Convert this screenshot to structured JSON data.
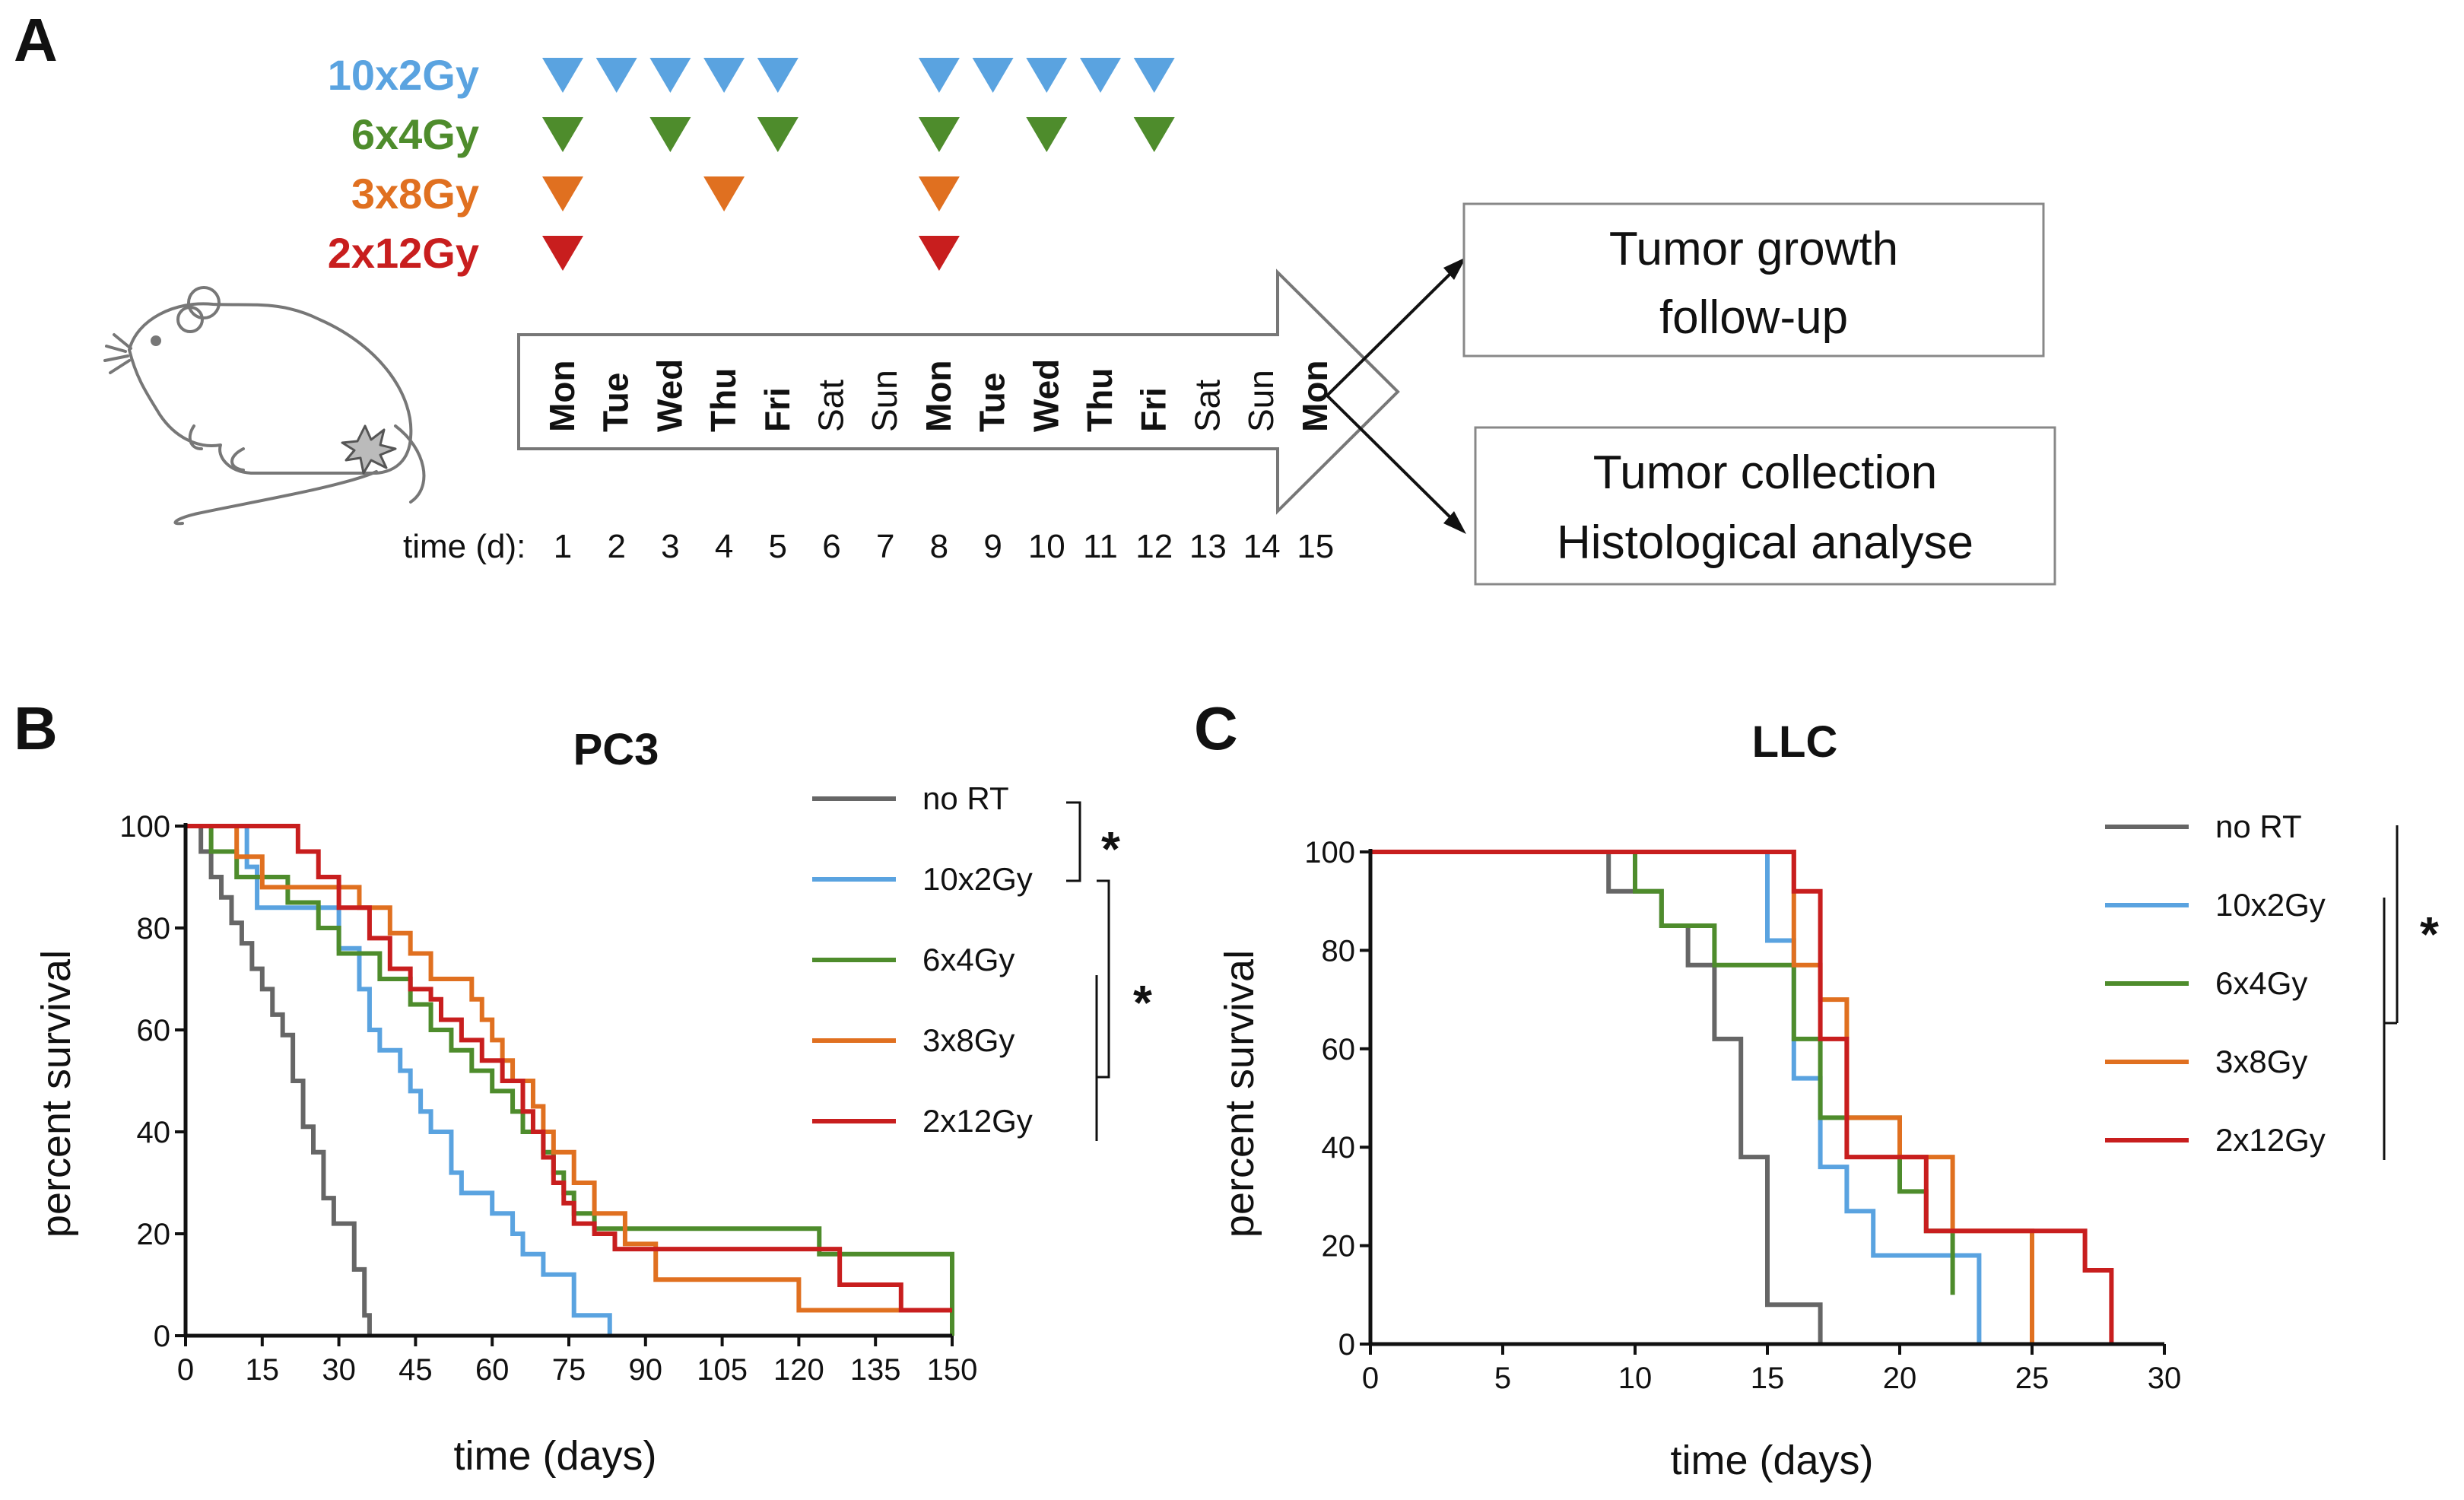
{
  "panels": {
    "A": "A",
    "B": "B",
    "C": "C"
  },
  "colors": {
    "noRT": "#666666",
    "g10x2": "#5aa3e0",
    "g6x4": "#4e8c2c",
    "g3x8": "#e07020",
    "g2x12": "#c81e1e"
  },
  "schedule": {
    "regimens": [
      {
        "label": "10x2Gy",
        "color": "#5aa3e0",
        "days": [
          1,
          2,
          3,
          4,
          5,
          8,
          9,
          10,
          11,
          12
        ]
      },
      {
        "label": "6x4Gy",
        "color": "#4e8c2c",
        "days": [
          1,
          3,
          5,
          8,
          10,
          12
        ]
      },
      {
        "label": "3x8Gy",
        "color": "#e07020",
        "days": [
          1,
          4,
          8
        ]
      },
      {
        "label": "2x12Gy",
        "color": "#c81e1e",
        "days": [
          1,
          8
        ]
      }
    ],
    "weekdays": [
      "Mon",
      "Tue",
      "Wed",
      "Thu",
      "Fri",
      "Sat",
      "Sun",
      "Mon",
      "Tue",
      "Wed",
      "Thu",
      "Fri",
      "Sat",
      "Sun",
      "Mon"
    ],
    "time_label": "time (d):",
    "day_numbers": [
      "1",
      "2",
      "3",
      "4",
      "5",
      "6",
      "7",
      "8",
      "9",
      "10",
      "11",
      "12",
      "13",
      "14",
      "15"
    ],
    "outcome_1": [
      "Tumor growth",
      "follow-up"
    ],
    "outcome_2": [
      "Tumor collection",
      "Histological analyse"
    ]
  },
  "chart_data": [
    {
      "type": "line",
      "subtype": "kaplan-meier",
      "title": "PC3",
      "xlabel": "time (days)",
      "ylabel": "percent survival",
      "xlim": [
        0,
        150
      ],
      "ylim": [
        0,
        100
      ],
      "xticks": [
        0,
        15,
        30,
        45,
        60,
        75,
        90,
        105,
        120,
        135,
        150
      ],
      "yticks": [
        0,
        20,
        40,
        60,
        80,
        100
      ],
      "significance": [
        "*",
        "*"
      ],
      "series": [
        {
          "name": "no RT",
          "color": "#666666",
          "x": [
            0,
            3,
            5,
            7,
            9,
            11,
            13,
            15,
            17,
            19,
            21,
            23,
            25,
            27,
            29,
            31,
            33,
            35,
            36
          ],
          "y": [
            100,
            95,
            90,
            86,
            81,
            77,
            72,
            68,
            63,
            59,
            50,
            41,
            36,
            27,
            22,
            22,
            13,
            4,
            0
          ]
        },
        {
          "name": "10x2Gy",
          "color": "#5aa3e0",
          "x": [
            0,
            8,
            12,
            14,
            30,
            34,
            36,
            38,
            42,
            44,
            46,
            48,
            52,
            54,
            60,
            64,
            66,
            70,
            72,
            76,
            82,
            83
          ],
          "y": [
            100,
            100,
            92,
            84,
            76,
            68,
            60,
            56,
            52,
            48,
            44,
            40,
            32,
            28,
            24,
            20,
            16,
            12,
            12,
            4,
            4,
            0
          ],
          "end_x": 83
        },
        {
          "name": "6x4Gy",
          "color": "#4e8c2c",
          "x": [
            0,
            5,
            10,
            20,
            26,
            30,
            38,
            44,
            48,
            52,
            56,
            60,
            64,
            66,
            70,
            72,
            74,
            76,
            80,
            88,
            124,
            150
          ],
          "y": [
            100,
            95,
            90,
            85,
            80,
            75,
            70,
            65,
            60,
            56,
            52,
            48,
            44,
            40,
            36,
            32,
            28,
            24,
            21,
            21,
            16,
            0
          ],
          "end_x": 150
        },
        {
          "name": "3x8Gy",
          "color": "#e07020",
          "x": [
            0,
            10,
            15,
            28,
            34,
            40,
            44,
            48,
            56,
            58,
            60,
            62,
            64,
            68,
            70,
            72,
            76,
            80,
            86,
            92,
            120,
            150
          ],
          "y": [
            100,
            94,
            88,
            88,
            84,
            79,
            75,
            70,
            66,
            62,
            58,
            54,
            50,
            45,
            40,
            36,
            30,
            24,
            18,
            11,
            5,
            5
          ],
          "end_x": 150
        },
        {
          "name": "2x12Gy",
          "color": "#c81e1e",
          "x": [
            0,
            14,
            22,
            26,
            30,
            36,
            40,
            44,
            48,
            50,
            54,
            58,
            62,
            66,
            68,
            70,
            72,
            74,
            76,
            80,
            84,
            96,
            128,
            140,
            150
          ],
          "y": [
            100,
            100,
            95,
            90,
            84,
            78,
            72,
            68,
            66,
            62,
            58,
            54,
            50,
            44,
            40,
            35,
            30,
            26,
            22,
            20,
            17,
            17,
            10,
            5,
            5
          ],
          "end_x": 150
        }
      ]
    },
    {
      "type": "line",
      "subtype": "kaplan-meier",
      "title": "LLC",
      "xlabel": "time (days)",
      "ylabel": "percent survival",
      "xlim": [
        0,
        30
      ],
      "ylim": [
        0,
        100
      ],
      "xticks": [
        0,
        5,
        10,
        15,
        20,
        25,
        30
      ],
      "yticks": [
        0,
        20,
        40,
        60,
        80,
        100
      ],
      "significance": [
        "*"
      ],
      "series": [
        {
          "name": "no RT",
          "color": "#666666",
          "x": [
            0,
            9,
            10,
            11,
            12,
            13,
            14,
            15,
            17
          ],
          "y": [
            100,
            92,
            92,
            85,
            77,
            62,
            38,
            8,
            0
          ]
        },
        {
          "name": "10x2Gy",
          "color": "#5aa3e0",
          "x": [
            0,
            14,
            15,
            16,
            17,
            18,
            19,
            22,
            23
          ],
          "y": [
            100,
            100,
            82,
            54,
            36,
            27,
            18,
            18,
            0
          ]
        },
        {
          "name": "6x4Gy",
          "color": "#4e8c2c",
          "x": [
            0,
            10,
            11,
            12,
            13,
            16,
            17,
            20,
            21,
            22
          ],
          "y": [
            100,
            92,
            85,
            85,
            77,
            62,
            46,
            31,
            23,
            10
          ]
        },
        {
          "name": "3x8Gy",
          "color": "#e07020",
          "x": [
            0,
            15,
            16,
            17,
            18,
            20,
            22,
            25
          ],
          "y": [
            100,
            100,
            77,
            70,
            46,
            38,
            23,
            0
          ]
        },
        {
          "name": "2x12Gy",
          "color": "#c81e1e",
          "x": [
            0,
            16,
            17,
            18,
            21,
            26,
            27,
            28
          ],
          "y": [
            100,
            92,
            62,
            38,
            23,
            23,
            15,
            0
          ]
        }
      ]
    }
  ]
}
